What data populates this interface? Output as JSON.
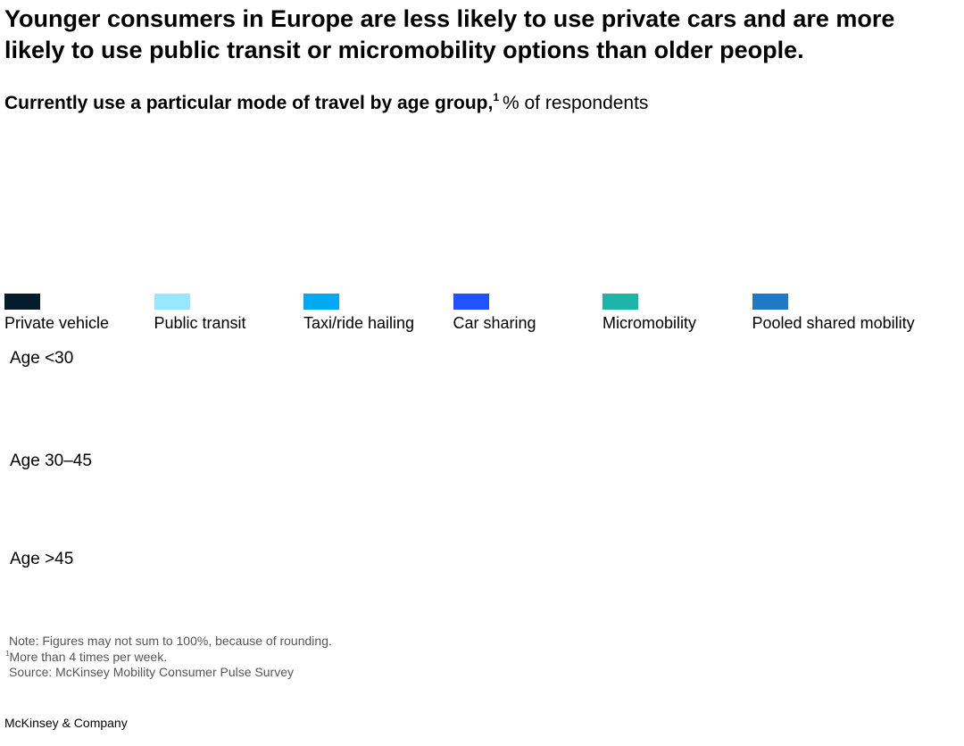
{
  "chart_data": {
    "type": "bar",
    "title": "Younger consumers in Europe are less likely to use private cars and are more likely to use public transit or micromobility options than older people.",
    "subtitle": "Currently use a particular mode of travel by age group,",
    "subtitle_footnote": "1",
    "subtitle_unit": "% of respondents",
    "categories": [
      "Age <30",
      "Age 30–45",
      "Age >45"
    ],
    "series": [
      {
        "name": "Private vehicle",
        "color": "#051c2c"
      },
      {
        "name": "Public transit",
        "color": "#99e6ff"
      },
      {
        "name": "Taxi/ride hailing",
        "color": "#00a9f4"
      },
      {
        "name": "Car sharing",
        "color": "#2251ff"
      },
      {
        "name": "Micromobility",
        "color": "#1bb6a8"
      },
      {
        "name": "Pooled shared mobility",
        "color": "#1f79c4"
      }
    ],
    "notes": {
      "note": "Note: Figures may not sum to 100%, because of rounding.",
      "footnote_mark": "1",
      "footnote": "More than 4 times per week.",
      "source": "Source: McKinsey Mobility Consumer Pulse Survey"
    },
    "footer": "McKinsey & Company"
  }
}
